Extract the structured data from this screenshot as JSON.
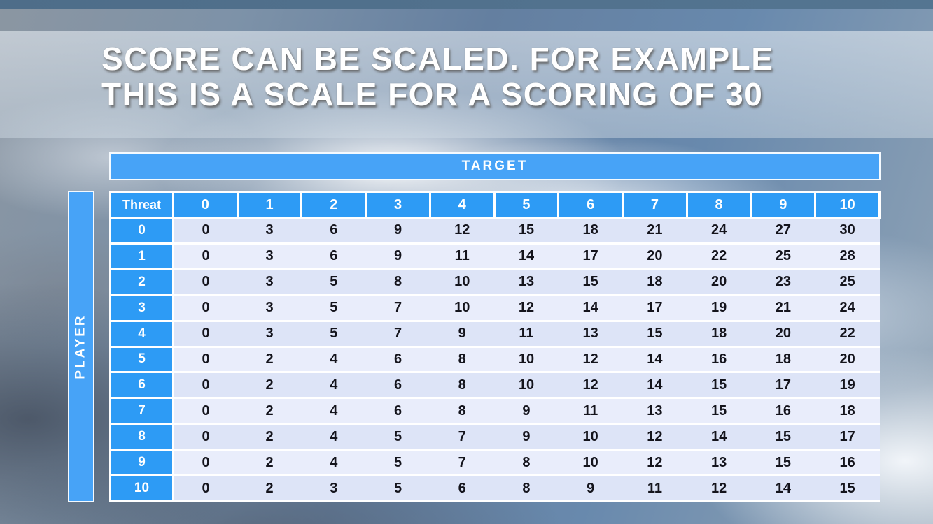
{
  "slide": {
    "title_line1": "SCORE CAN BE SCALED. FOR EXAMPLE",
    "title_line2": "THIS IS A SCALE FOR A SCORING OF 30"
  },
  "chart_data": {
    "type": "table",
    "title": "SCORE CAN BE SCALED. FOR EXAMPLE THIS IS A SCALE FOR A SCORING OF 30",
    "column_axis_label": "TARGET",
    "row_axis_label": "PLAYER",
    "corner_label": "Threat",
    "columns": [
      "0",
      "1",
      "2",
      "3",
      "4",
      "5",
      "6",
      "7",
      "8",
      "9",
      "10"
    ],
    "row_labels": [
      "0",
      "1",
      "2",
      "3",
      "4",
      "5",
      "6",
      "7",
      "8",
      "9",
      "10"
    ],
    "rows": [
      [
        0,
        3,
        6,
        9,
        12,
        15,
        18,
        21,
        24,
        27,
        30
      ],
      [
        0,
        3,
        6,
        9,
        11,
        14,
        17,
        20,
        22,
        25,
        28
      ],
      [
        0,
        3,
        5,
        8,
        10,
        13,
        15,
        18,
        20,
        23,
        25
      ],
      [
        0,
        3,
        5,
        7,
        10,
        12,
        14,
        17,
        19,
        21,
        24
      ],
      [
        0,
        3,
        5,
        7,
        9,
        11,
        13,
        15,
        18,
        20,
        22
      ],
      [
        0,
        2,
        4,
        6,
        8,
        10,
        12,
        14,
        16,
        18,
        20
      ],
      [
        0,
        2,
        4,
        6,
        8,
        10,
        12,
        14,
        15,
        17,
        19
      ],
      [
        0,
        2,
        4,
        6,
        8,
        9,
        11,
        13,
        15,
        16,
        18
      ],
      [
        0,
        2,
        4,
        5,
        7,
        9,
        10,
        12,
        14,
        15,
        17
      ],
      [
        0,
        2,
        4,
        5,
        7,
        8,
        10,
        12,
        13,
        15,
        16
      ],
      [
        0,
        2,
        3,
        5,
        6,
        8,
        9,
        11,
        12,
        14,
        15
      ]
    ]
  },
  "colors": {
    "header_blue": "#2d9bf5",
    "bar_blue": "#47a3f7",
    "row_dark": "#dde4f7",
    "row_light": "#e9edfb",
    "top_strip": "#4e6d89",
    "number_ink": "#14141c"
  }
}
